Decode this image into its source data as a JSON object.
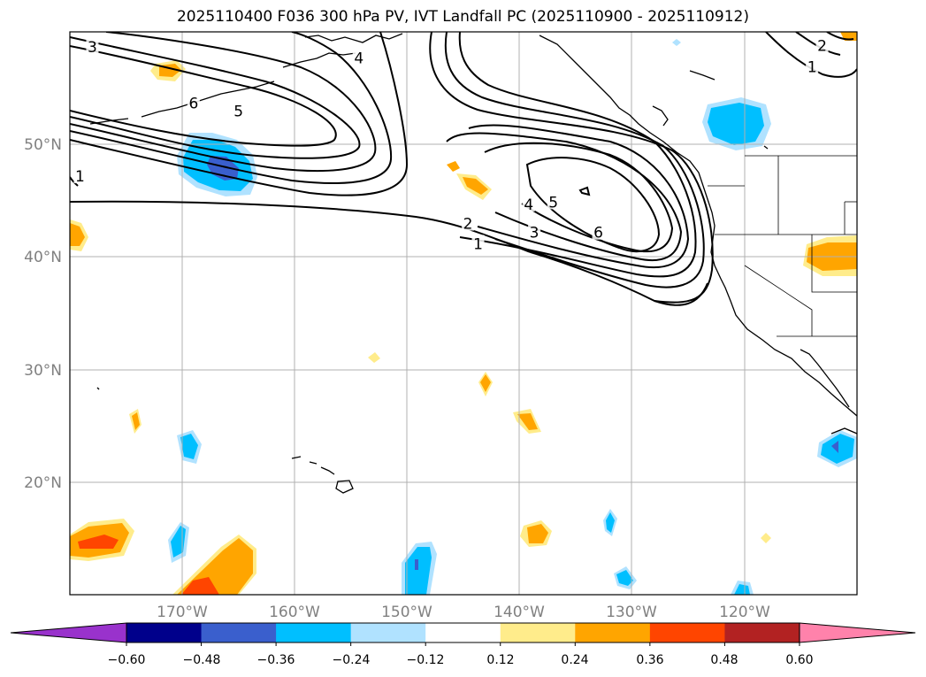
{
  "title": "2025110400 F036 300 hPa PV, IVT Landfall PC (2025110900 - 2025110912)",
  "map": {
    "projection": "PlateCarree",
    "lon_range": [
      -180,
      -110
    ],
    "lat_range": [
      10,
      60
    ],
    "lat_ticks": [
      {
        "value": 50,
        "label": "50°N"
      },
      {
        "value": 40,
        "label": "40°N"
      },
      {
        "value": 30,
        "label": "30°N"
      },
      {
        "value": 20,
        "label": "20°N"
      }
    ],
    "lon_ticks": [
      {
        "value": -170,
        "label": "170°W"
      },
      {
        "value": -160,
        "label": "160°W"
      },
      {
        "value": -150,
        "label": "150°W"
      },
      {
        "value": -140,
        "label": "140°W"
      },
      {
        "value": -130,
        "label": "130°W"
      },
      {
        "value": -120,
        "label": "120°W"
      }
    ],
    "gridlines": true,
    "contour_labels": [
      {
        "text": "3",
        "lon": -178.0,
        "lat": 58.6
      },
      {
        "text": "4",
        "lon": -154.3,
        "lat": 57.6
      },
      {
        "text": "6",
        "lon": -169.0,
        "lat": 53.6
      },
      {
        "text": "5",
        "lon": -165.0,
        "lat": 52.9
      },
      {
        "text": "1",
        "lon": -179.1,
        "lat": 47.1
      },
      {
        "text": "4",
        "lon": -139.2,
        "lat": 44.6
      },
      {
        "text": "5",
        "lon": -137.0,
        "lat": 44.8
      },
      {
        "text": "2",
        "lon": -144.6,
        "lat": 42.9
      },
      {
        "text": "3",
        "lon": -138.7,
        "lat": 42.1
      },
      {
        "text": "6",
        "lon": -133.0,
        "lat": 42.1
      },
      {
        "text": "1",
        "lon": -143.7,
        "lat": 41.1
      },
      {
        "text": "2",
        "lon": -113.1,
        "lat": 58.7
      },
      {
        "text": "1",
        "lon": -114.0,
        "lat": 56.8
      }
    ]
  },
  "colorbar": {
    "colors": [
      "#9932cc",
      "#00008b",
      "#3a5fcd",
      "#00bfff",
      "#b0e2ff",
      "#ffffff",
      "#ffec8b",
      "#ffa500",
      "#ff4500",
      "#b22222",
      "#ff82ab"
    ],
    "tick_labels": [
      "−0.60",
      "−0.48",
      "−0.36",
      "−0.24",
      "−0.12",
      "0.12",
      "0.24",
      "0.36",
      "0.48",
      "0.60"
    ]
  },
  "colors": {
    "land_outline": "#000000",
    "grid": "#b0b0b0",
    "tick_text": "#808080"
  }
}
